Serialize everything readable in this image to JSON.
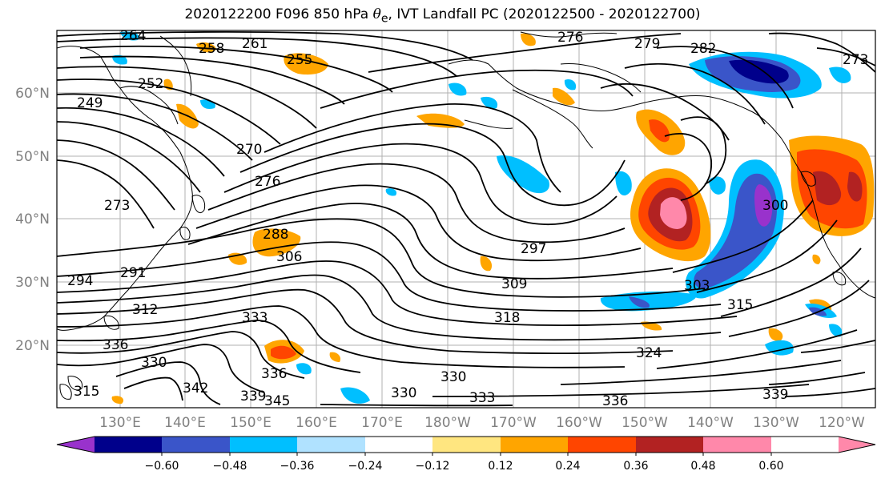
{
  "title_main": "2020122200 F096 850 hPa ",
  "title_var": "θ",
  "title_sub": "e",
  "title_rest": ", IVT Landfall PC (2020122500 - 2020122700)",
  "lat_labels": [
    "60°N",
    "50°N",
    "40°N",
    "30°N",
    "20°N"
  ],
  "lon_labels": [
    "130°E",
    "140°E",
    "150°E",
    "160°E",
    "170°E",
    "180°W",
    "170°W",
    "160°W",
    "150°W",
    "140°W",
    "130°W",
    "120°W"
  ],
  "colorbar": {
    "colors": [
      "#9932cc",
      "#00008b",
      "#3a55c9",
      "#00bfff",
      "#b0e2ff",
      "#ffffff",
      "#ffe680",
      "#ffa500",
      "#ff4500",
      "#b22222",
      "#ff88aa"
    ],
    "ticks": [
      "−0.60",
      "−0.48",
      "−0.36",
      "−0.24",
      "−0.12",
      "0.12",
      "0.24",
      "0.36",
      "0.48",
      "0.60"
    ]
  },
  "contour_labels": [
    "264",
    "261",
    "258",
    "255",
    "252",
    "249",
    "276",
    "279",
    "282",
    "273",
    "270",
    "276",
    "273",
    "288",
    "306",
    "294",
    "291",
    "312",
    "333",
    "336",
    "330",
    "342",
    "339",
    "345",
    "315",
    "297",
    "309",
    "318",
    "324",
    "303",
    "300",
    "330",
    "330",
    "336",
    "336",
    "333",
    "339",
    "315"
  ],
  "chart_data": {
    "type": "map",
    "variable": "850 hPa theta-e contours with IVT Landfall PC shading",
    "lat_range": [
      10,
      70
    ],
    "lon_range": [
      120,
      245
    ],
    "shading_levels": [
      -0.6,
      -0.48,
      -0.36,
      -0.24,
      -0.12,
      0.12,
      0.24,
      0.36,
      0.48,
      0.6
    ]
  }
}
